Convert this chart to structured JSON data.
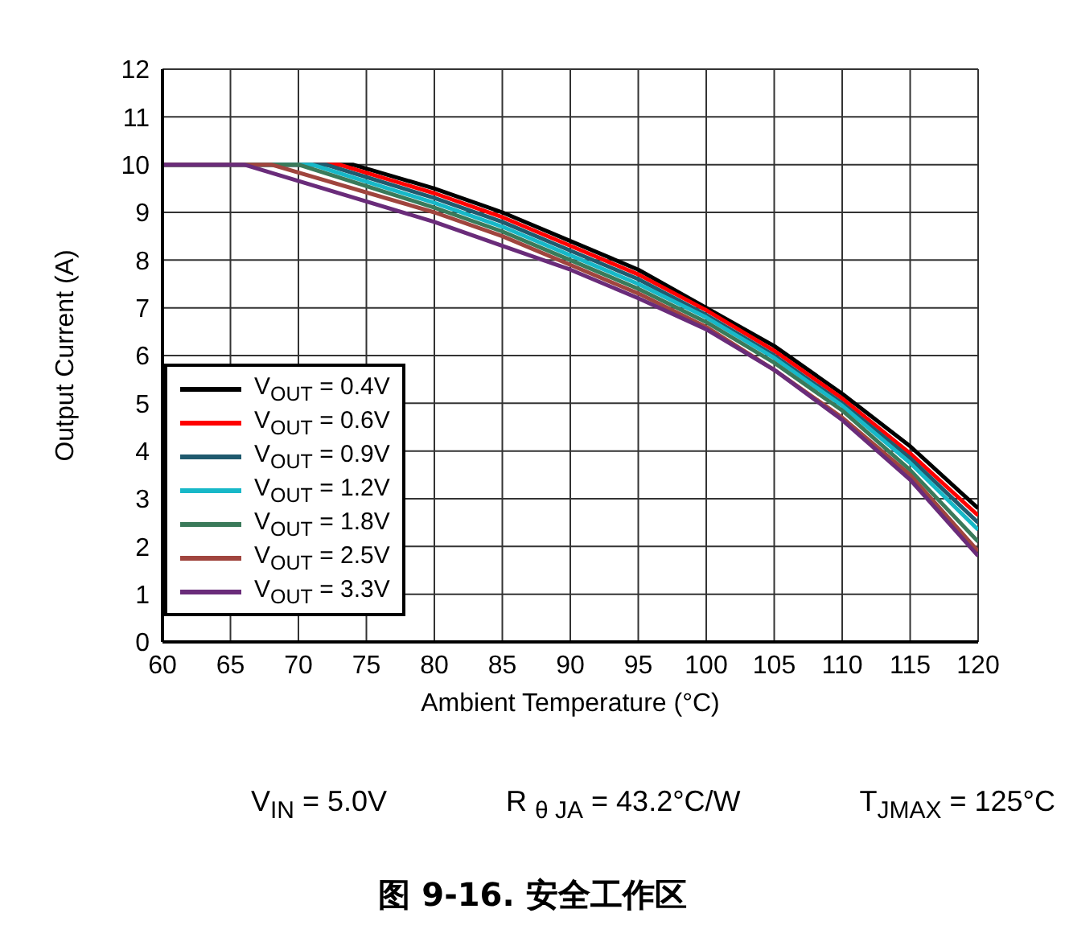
{
  "chart_data": {
    "type": "line",
    "title": "图 9-16. 安全工作区",
    "xlabel": "Ambient Temperature (°C)",
    "ylabel": "Output Current (A)",
    "annotations": [
      "V$_{IN}$ = 5.0V",
      "R $_{θ JA}$ = 43.2°C/W",
      "T$_{JMAX}$ = 125°C"
    ],
    "xlim": [
      60,
      120
    ],
    "xticks": [
      60,
      65,
      70,
      75,
      80,
      85,
      90,
      95,
      100,
      105,
      110,
      115,
      120
    ],
    "ylim": [
      0,
      12
    ],
    "yticks": [
      0,
      1,
      2,
      3,
      4,
      5,
      6,
      7,
      8,
      9,
      10,
      11,
      12
    ],
    "grid": true,
    "legend": "bottom left",
    "marker": "none",
    "line_style": "solid",
    "series": [
      {
        "name": "V$_{OUT}$ = 0.4V",
        "color": "#000000",
        "x": [
          60,
          74,
          80,
          85,
          90,
          95,
          100,
          105,
          110,
          115,
          120
        ],
        "values": [
          10,
          10,
          9.5,
          9.0,
          8.4,
          7.8,
          7.0,
          6.2,
          5.2,
          4.1,
          2.8
        ]
      },
      {
        "name": "V$_{OUT}$ = 0.6V",
        "color": "#ff0000",
        "x": [
          60,
          73,
          80,
          85,
          90,
          95,
          100,
          105,
          110,
          115,
          120
        ],
        "values": [
          10,
          10,
          9.4,
          8.9,
          8.3,
          7.7,
          6.95,
          6.1,
          5.1,
          3.95,
          2.65
        ]
      },
      {
        "name": "V$_{OUT}$ = 0.9V",
        "color": "#1f5a6e",
        "x": [
          60,
          72,
          80,
          85,
          90,
          95,
          100,
          105,
          110,
          115,
          120
        ],
        "values": [
          10,
          10,
          9.3,
          8.8,
          8.2,
          7.6,
          6.85,
          6.0,
          5.0,
          3.85,
          2.5
        ]
      },
      {
        "name": "V$_{OUT}$ = 1.2V",
        "color": "#17b8c8",
        "x": [
          60,
          71,
          80,
          85,
          90,
          95,
          100,
          105,
          110,
          115,
          120
        ],
        "values": [
          10,
          10,
          9.2,
          8.7,
          8.1,
          7.5,
          6.8,
          5.95,
          4.95,
          3.75,
          2.35
        ]
      },
      {
        "name": "V$_{OUT}$ = 1.8V",
        "color": "#3a7a5a",
        "x": [
          60,
          70,
          80,
          85,
          90,
          95,
          100,
          105,
          110,
          115,
          120
        ],
        "values": [
          10,
          10,
          9.1,
          8.6,
          8.0,
          7.4,
          6.7,
          5.85,
          4.85,
          3.6,
          2.1
        ]
      },
      {
        "name": "V$_{OUT}$ = 2.5V",
        "color": "#a0453e",
        "x": [
          60,
          68,
          80,
          85,
          90,
          95,
          100,
          105,
          110,
          115,
          120
        ],
        "values": [
          10,
          10,
          9.0,
          8.5,
          7.9,
          7.3,
          6.6,
          5.7,
          4.7,
          3.5,
          1.9
        ]
      },
      {
        "name": "V$_{OUT}$ = 3.3V",
        "color": "#6a2c7a",
        "x": [
          60,
          66,
          80,
          85,
          90,
          95,
          100,
          105,
          110,
          115,
          120
        ],
        "values": [
          10,
          10,
          8.8,
          8.3,
          7.8,
          7.2,
          6.55,
          5.7,
          4.65,
          3.4,
          1.8
        ]
      }
    ]
  }
}
